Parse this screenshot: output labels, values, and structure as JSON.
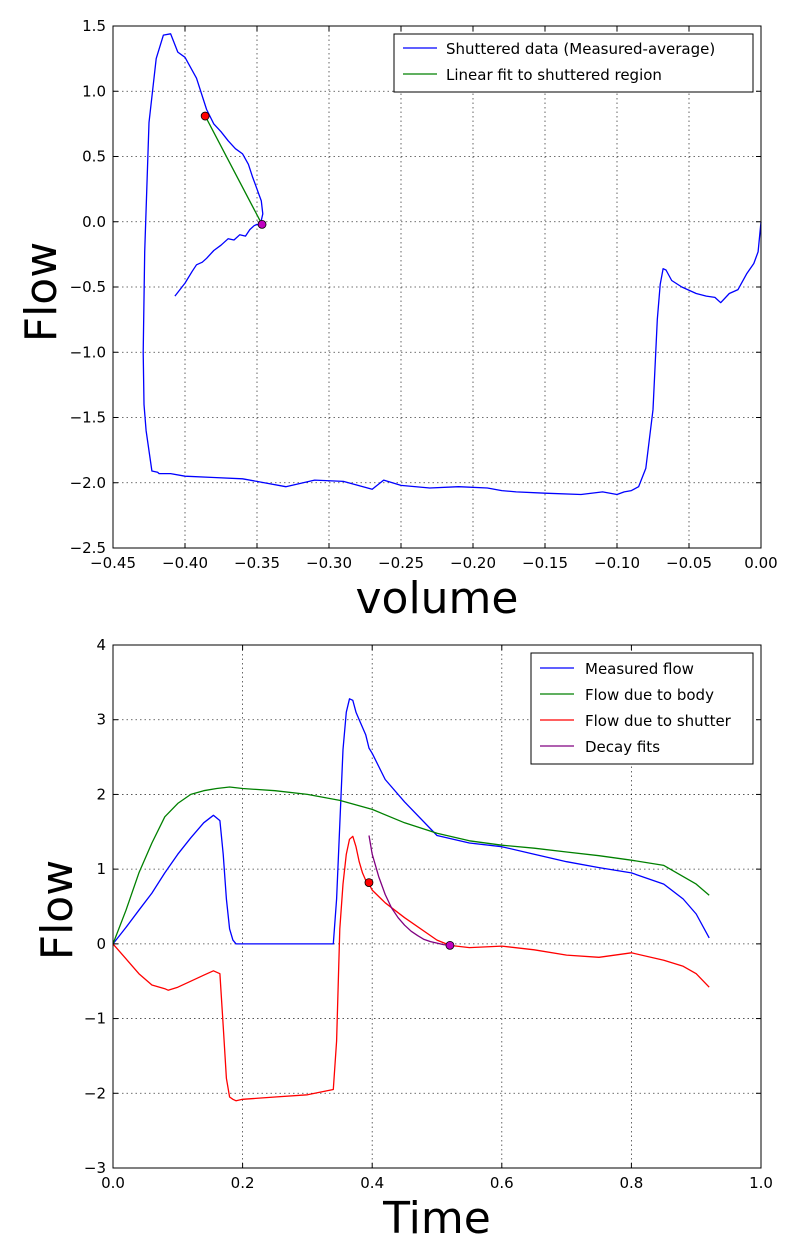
{
  "chart_data": [
    {
      "type": "line",
      "xlabel": "volume",
      "ylabel": "Flow",
      "xlim": [
        -0.45,
        0.0
      ],
      "ylim": [
        -2.5,
        1.5
      ],
      "xticks": [
        -0.45,
        -0.4,
        -0.35,
        -0.3,
        -0.25,
        -0.2,
        -0.15,
        -0.1,
        -0.05,
        0.0
      ],
      "yticks": [
        -2.5,
        -2.0,
        -1.5,
        -1.0,
        -0.5,
        0.0,
        0.5,
        1.0,
        1.5
      ],
      "xtick_labels": [
        "−0.45",
        "−0.40",
        "−0.35",
        "−0.30",
        "−0.25",
        "−0.20",
        "−0.15",
        "−0.10",
        "−0.05",
        "0.00"
      ],
      "ytick_labels": [
        "−2.5",
        "−2.0",
        "−1.5",
        "−1.0",
        "−0.5",
        "0.0",
        "0.5",
        "1.0",
        "1.5"
      ],
      "grid": true,
      "legend_position": "top-right",
      "series": [
        {
          "name": "Shuttered data (Measured-average)",
          "color": "#0000ff",
          "x": [
            -0.407,
            -0.4,
            -0.395,
            -0.392,
            -0.388,
            -0.385,
            -0.38,
            -0.375,
            -0.37,
            -0.366,
            -0.362,
            -0.358,
            -0.355,
            -0.352,
            -0.35,
            -0.348,
            -0.347,
            -0.346,
            -0.347,
            -0.349,
            -0.351,
            -0.353,
            -0.356,
            -0.36,
            -0.365,
            -0.37,
            -0.375,
            -0.38,
            -0.385,
            -0.392,
            -0.4,
            -0.405,
            -0.41,
            -0.415,
            -0.42,
            -0.425,
            -0.428,
            -0.429,
            -0.4285,
            -0.427,
            -0.423,
            -0.419,
            -0.418,
            -0.41,
            -0.4,
            -0.38,
            -0.36,
            -0.33,
            -0.31,
            -0.29,
            -0.27,
            -0.262,
            -0.25,
            -0.23,
            -0.21,
            -0.19,
            -0.18,
            -0.17,
            -0.15,
            -0.125,
            -0.11,
            -0.1,
            -0.095,
            -0.09,
            -0.085,
            -0.08,
            -0.075,
            -0.072,
            -0.07,
            -0.068,
            -0.066,
            -0.062,
            -0.055,
            -0.045,
            -0.038,
            -0.032,
            -0.028,
            -0.022,
            -0.016,
            -0.01,
            -0.005,
            -0.002,
            0.0
          ],
          "y": [
            -0.57,
            -0.47,
            -0.38,
            -0.33,
            -0.31,
            -0.28,
            -0.22,
            -0.18,
            -0.13,
            -0.14,
            -0.1,
            -0.11,
            -0.06,
            -0.03,
            -0.02,
            -0.03,
            0.01,
            0.06,
            0.16,
            0.22,
            0.28,
            0.34,
            0.44,
            0.52,
            0.56,
            0.62,
            0.69,
            0.75,
            0.86,
            1.1,
            1.26,
            1.3,
            1.44,
            1.43,
            1.25,
            0.76,
            -0.23,
            -1.0,
            -1.4,
            -1.6,
            -1.91,
            -1.92,
            -1.93,
            -1.93,
            -1.95,
            -1.96,
            -1.97,
            -2.03,
            -1.98,
            -1.99,
            -2.05,
            -1.98,
            -2.02,
            -2.04,
            -2.03,
            -2.04,
            -2.06,
            -2.07,
            -2.08,
            -2.09,
            -2.07,
            -2.09,
            -2.07,
            -2.06,
            -2.03,
            -1.89,
            -1.44,
            -0.75,
            -0.48,
            -0.36,
            -0.37,
            -0.45,
            -0.5,
            -0.55,
            -0.57,
            -0.58,
            -0.62,
            -0.55,
            -0.52,
            -0.4,
            -0.32,
            -0.23,
            0.0
          ]
        },
        {
          "name": "Linear fit to shuttered region",
          "color": "#008000",
          "x": [
            -0.386,
            -0.3465
          ],
          "y": [
            0.81,
            -0.02
          ]
        }
      ],
      "markers": [
        {
          "x": -0.386,
          "y": 0.81,
          "color": "#ff0000"
        },
        {
          "x": -0.3465,
          "y": -0.02,
          "color": "#c000c0"
        }
      ]
    },
    {
      "type": "line",
      "xlabel": "Time",
      "ylabel": "Flow",
      "xlim": [
        0.0,
        1.0
      ],
      "ylim": [
        -3,
        4
      ],
      "xticks": [
        0.0,
        0.2,
        0.4,
        0.6,
        0.8,
        1.0
      ],
      "yticks": [
        -3,
        -2,
        -1,
        0,
        1,
        2,
        3,
        4
      ],
      "xtick_labels": [
        "0.0",
        "0.2",
        "0.4",
        "0.6",
        "0.8",
        "1.0"
      ],
      "ytick_labels": [
        "−3",
        "−2",
        "−1",
        "0",
        "1",
        "2",
        "3",
        "4"
      ],
      "grid": true,
      "legend_position": "top-right",
      "series": [
        {
          "name": "Measured flow",
          "color": "#0000ff",
          "x": [
            0.0,
            0.02,
            0.04,
            0.06,
            0.08,
            0.1,
            0.12,
            0.14,
            0.155,
            0.165,
            0.17,
            0.175,
            0.18,
            0.185,
            0.19,
            0.2,
            0.25,
            0.3,
            0.34,
            0.345,
            0.35,
            0.355,
            0.36,
            0.365,
            0.37,
            0.375,
            0.38,
            0.39,
            0.395,
            0.4,
            0.42,
            0.45,
            0.5,
            0.55,
            0.6,
            0.65,
            0.7,
            0.75,
            0.8,
            0.85,
            0.88,
            0.9,
            0.92
          ],
          "y": [
            0.0,
            0.22,
            0.45,
            0.68,
            0.95,
            1.2,
            1.42,
            1.62,
            1.72,
            1.65,
            1.2,
            0.6,
            0.2,
            0.05,
            0.0,
            0.0,
            0.0,
            0.0,
            0.0,
            0.6,
            1.6,
            2.6,
            3.1,
            3.28,
            3.26,
            3.1,
            3.0,
            2.8,
            2.62,
            2.55,
            2.2,
            1.9,
            1.45,
            1.35,
            1.3,
            1.2,
            1.1,
            1.02,
            0.95,
            0.8,
            0.6,
            0.4,
            0.08
          ]
        },
        {
          "name": "Flow due to body",
          "color": "#008000",
          "x": [
            0.0,
            0.02,
            0.04,
            0.06,
            0.08,
            0.1,
            0.12,
            0.14,
            0.16,
            0.18,
            0.2,
            0.25,
            0.3,
            0.35,
            0.4,
            0.45,
            0.5,
            0.55,
            0.6,
            0.65,
            0.7,
            0.75,
            0.8,
            0.85,
            0.9,
            0.92
          ],
          "y": [
            0.0,
            0.45,
            0.95,
            1.35,
            1.7,
            1.88,
            2.0,
            2.05,
            2.08,
            2.1,
            2.08,
            2.05,
            2.0,
            1.92,
            1.8,
            1.62,
            1.48,
            1.38,
            1.32,
            1.28,
            1.23,
            1.18,
            1.12,
            1.05,
            0.8,
            0.65
          ]
        },
        {
          "name": "Flow due to shutter",
          "color": "#ff0000",
          "x": [
            0.0,
            0.02,
            0.04,
            0.06,
            0.08,
            0.085,
            0.1,
            0.12,
            0.14,
            0.155,
            0.165,
            0.17,
            0.175,
            0.18,
            0.185,
            0.19,
            0.2,
            0.25,
            0.3,
            0.34,
            0.345,
            0.35,
            0.355,
            0.36,
            0.365,
            0.37,
            0.375,
            0.38,
            0.385,
            0.39,
            0.395,
            0.4,
            0.42,
            0.45,
            0.5,
            0.52,
            0.55,
            0.6,
            0.65,
            0.7,
            0.75,
            0.8,
            0.85,
            0.88,
            0.9,
            0.92
          ],
          "y": [
            0.0,
            -0.2,
            -0.4,
            -0.55,
            -0.6,
            -0.62,
            -0.58,
            -0.5,
            -0.42,
            -0.36,
            -0.4,
            -1.1,
            -1.8,
            -2.05,
            -2.08,
            -2.1,
            -2.08,
            -2.05,
            -2.02,
            -1.95,
            -1.3,
            0.2,
            0.8,
            1.2,
            1.4,
            1.44,
            1.3,
            1.1,
            0.95,
            0.85,
            0.8,
            0.72,
            0.55,
            0.35,
            0.05,
            -0.02,
            -0.05,
            -0.03,
            -0.08,
            -0.15,
            -0.18,
            -0.12,
            -0.22,
            -0.3,
            -0.4,
            -0.58
          ]
        },
        {
          "name": "Decay fits",
          "color": "#800080",
          "x": [
            0.395,
            0.4,
            0.41,
            0.42,
            0.43,
            0.44,
            0.45,
            0.46,
            0.47,
            0.48,
            0.49,
            0.5,
            0.51,
            0.52
          ],
          "y": [
            1.45,
            1.2,
            0.9,
            0.66,
            0.48,
            0.35,
            0.25,
            0.17,
            0.11,
            0.06,
            0.03,
            0.01,
            -0.01,
            -0.02
          ]
        }
      ],
      "markers": [
        {
          "x": 0.395,
          "y": 0.82,
          "color": "#ff0000"
        },
        {
          "x": 0.52,
          "y": -0.02,
          "color": "#c000c0"
        }
      ]
    }
  ]
}
